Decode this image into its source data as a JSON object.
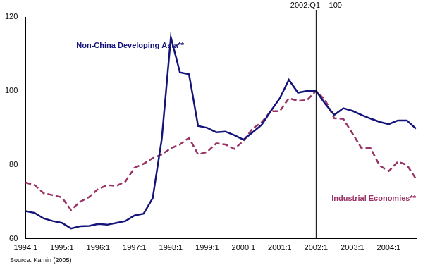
{
  "chart_data": {
    "type": "line",
    "categories": [
      "1994:1",
      null,
      null,
      null,
      "1995:1",
      null,
      null,
      null,
      "1996:1",
      null,
      null,
      null,
      "1997:1",
      null,
      null,
      null,
      "1998:1",
      null,
      null,
      null,
      "1999:1",
      null,
      null,
      null,
      "2000:1",
      null,
      null,
      null,
      "2001:1",
      null,
      null,
      null,
      "2002:1",
      null,
      null,
      null,
      "2003:1",
      null,
      null,
      null,
      "2004:1",
      null,
      null,
      null
    ],
    "series": [
      {
        "name": "Non-China Developing Asia**",
        "color": "#14147a",
        "line_style": "solid",
        "values": [
          67.5,
          67,
          65.5,
          64.8,
          64.3,
          62.8,
          63.4,
          63.5,
          64,
          63.8,
          64.3,
          64.8,
          66.3,
          66.8,
          71,
          87,
          114.5,
          105,
          104.5,
          90.5,
          90,
          88.8,
          89,
          88,
          86.8,
          88.8,
          90.8,
          94.5,
          98,
          103,
          99.5,
          100,
          100,
          96.5,
          93.5,
          95.3,
          94.6,
          93.5,
          92.5,
          91.6,
          91,
          92,
          92,
          89.8
        ]
      },
      {
        "name": "Industrial Economies**",
        "color": "#993366",
        "line_style": "dashed",
        "values": [
          75.2,
          74.5,
          72.3,
          71.8,
          71.2,
          67.8,
          70,
          71.3,
          73.5,
          74.5,
          74.3,
          75.5,
          79.2,
          80.3,
          81.8,
          82.8,
          84.5,
          85.5,
          87.3,
          82.8,
          83.5,
          85.8,
          85.5,
          84.3,
          86.5,
          89.8,
          91.5,
          94.5,
          94.5,
          98,
          97.3,
          97.5,
          100,
          97.5,
          92.6,
          92.4,
          88.5,
          84.5,
          84.5,
          79.8,
          78.3,
          80.8,
          80,
          76.2
        ]
      }
    ],
    "ylim": [
      60,
      120
    ],
    "yticks": [
      60,
      80,
      100,
      120
    ],
    "grid": false,
    "annotations": [
      {
        "label": "2002:Q1 = 100",
        "x": "2002:1"
      }
    ],
    "source": "Source: Kamin (2005)"
  }
}
